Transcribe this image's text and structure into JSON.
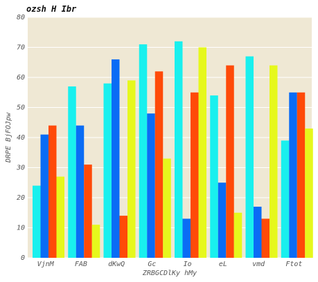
{
  "chart_data": {
    "type": "bar",
    "title": "ozsh H Ibr",
    "xlabel": "ZRBGCDlKy hMy",
    "ylabel": "DRPE BjFOJpw",
    "ylim": [
      0,
      80
    ],
    "yticks": [
      0,
      10,
      20,
      30,
      40,
      50,
      60,
      70,
      80
    ],
    "grid": true,
    "legend": "none",
    "background": "#efe8d4",
    "categories": [
      "VjnM",
      "FAB",
      "dKwQ",
      "Gc",
      "Io",
      "eL",
      "vmd",
      "Ftot"
    ],
    "series": [
      {
        "color": "#19f0ee",
        "values": [
          24,
          57,
          58,
          71,
          72,
          54,
          67,
          39
        ]
      },
      {
        "color": "#0a6cf5",
        "values": [
          41,
          44,
          66,
          48,
          13,
          25,
          17,
          55
        ]
      },
      {
        "color": "#ff4a08",
        "values": [
          44,
          31,
          14,
          62,
          55,
          64,
          13,
          55
        ]
      },
      {
        "color": "#e6f81c",
        "values": [
          27,
          11,
          59,
          33,
          70,
          15,
          64,
          43
        ]
      }
    ]
  }
}
